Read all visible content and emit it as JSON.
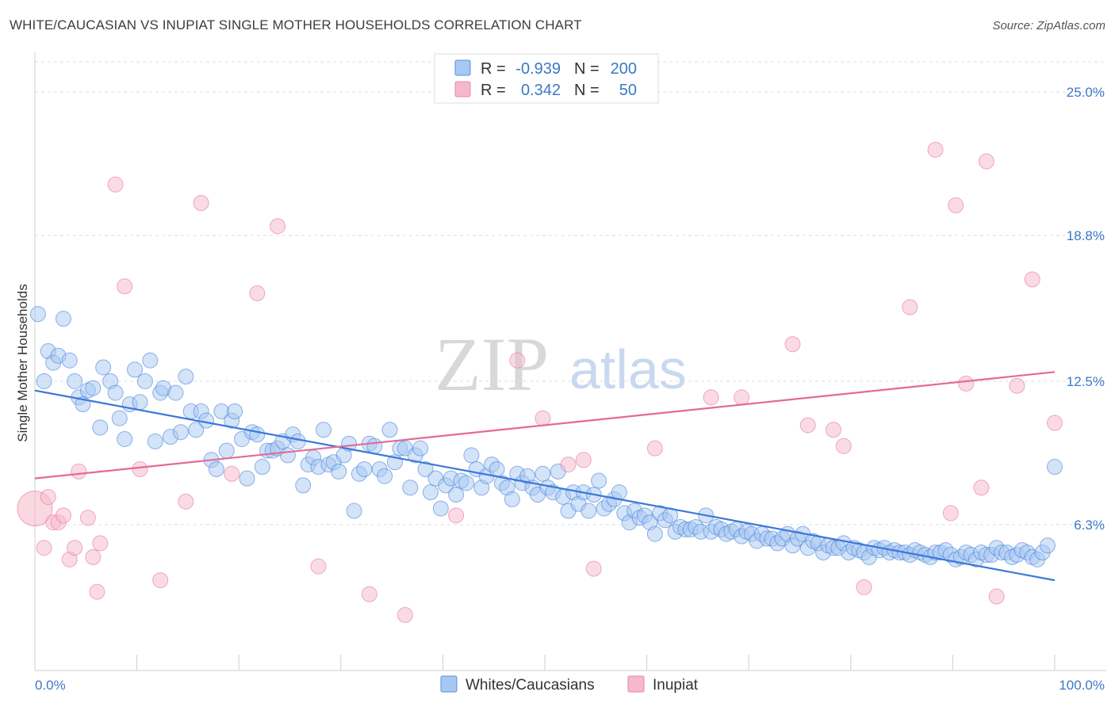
{
  "title": "WHITE/CAUCASIAN VS INUPIAT SINGLE MOTHER HOUSEHOLDS CORRELATION CHART",
  "source": "Source: ZipAtlas.com",
  "watermark": {
    "zip": "ZIP",
    "atlas": "atlas"
  },
  "legend_top": [
    {
      "r_label": "R =",
      "r_value": "-0.939",
      "n_label": "N =",
      "n_value": "200",
      "color": "#a7c8f2"
    },
    {
      "r_label": "R =",
      "r_value": "0.342",
      "n_label": "N =",
      "n_value": "50",
      "color": "#f6b8cb"
    }
  ],
  "legend_bottom": [
    {
      "label": "Whites/Caucasians",
      "color": "#a7c8f2"
    },
    {
      "label": "Inupiat",
      "color": "#f6b8cb"
    }
  ],
  "chart_data": {
    "type": "scatter",
    "xlabel": "",
    "ylabel": "Single Mother Households",
    "x_tick_labels": [
      "0.0%",
      "100.0%"
    ],
    "y_tick_labels": [
      "6.3%",
      "12.5%",
      "18.8%",
      "25.0%"
    ],
    "y_ticks": [
      6.3,
      12.5,
      18.8,
      25.0
    ],
    "xlim": [
      0,
      100
    ],
    "ylim": [
      0,
      26.3
    ],
    "grid": true,
    "legend_position": "top-center",
    "series": [
      {
        "name": "Whites/Caucasians",
        "color": "#3b78d8",
        "fill": "#a7c8f2",
        "trend": {
          "x": [
            0,
            100
          ],
          "y": [
            12.1,
            3.9
          ]
        },
        "points": [
          [
            0.3,
            15.4
          ],
          [
            0.9,
            12.5
          ],
          [
            1.3,
            13.8
          ],
          [
            1.8,
            13.3
          ],
          [
            2.3,
            13.6
          ],
          [
            2.8,
            15.2
          ],
          [
            3.4,
            13.4
          ],
          [
            3.9,
            12.5
          ],
          [
            4.3,
            11.8
          ],
          [
            4.7,
            11.5
          ],
          [
            5.2,
            12.1
          ],
          [
            5.7,
            12.2
          ],
          [
            6.4,
            10.5
          ],
          [
            6.7,
            13.1
          ],
          [
            7.4,
            12.5
          ],
          [
            7.9,
            12.0
          ],
          [
            8.3,
            10.9
          ],
          [
            8.8,
            10.0
          ],
          [
            9.3,
            11.5
          ],
          [
            9.8,
            13.0
          ],
          [
            10.3,
            11.6
          ],
          [
            10.8,
            12.5
          ],
          [
            11.3,
            13.4
          ],
          [
            11.8,
            9.9
          ],
          [
            12.3,
            12.0
          ],
          [
            12.6,
            12.2
          ],
          [
            13.3,
            10.1
          ],
          [
            13.8,
            12.0
          ],
          [
            14.3,
            10.3
          ],
          [
            14.8,
            12.7
          ],
          [
            15.3,
            11.2
          ],
          [
            15.8,
            10.4
          ],
          [
            16.3,
            11.2
          ],
          [
            16.8,
            10.8
          ],
          [
            17.3,
            9.1
          ],
          [
            17.8,
            8.7
          ],
          [
            18.3,
            11.2
          ],
          [
            18.8,
            9.5
          ],
          [
            19.3,
            10.8
          ],
          [
            19.6,
            11.2
          ],
          [
            20.3,
            10.0
          ],
          [
            20.8,
            8.3
          ],
          [
            21.3,
            10.3
          ],
          [
            21.8,
            10.2
          ],
          [
            22.3,
            8.8
          ],
          [
            22.8,
            9.5
          ],
          [
            23.3,
            9.5
          ],
          [
            23.8,
            9.6
          ],
          [
            24.3,
            9.9
          ],
          [
            24.8,
            9.3
          ],
          [
            25.3,
            10.2
          ],
          [
            25.8,
            9.9
          ],
          [
            26.3,
            8.0
          ],
          [
            26.8,
            8.9
          ],
          [
            27.3,
            9.2
          ],
          [
            27.8,
            8.8
          ],
          [
            28.3,
            10.4
          ],
          [
            28.8,
            8.9
          ],
          [
            29.3,
            9.0
          ],
          [
            29.8,
            8.6
          ],
          [
            30.3,
            9.3
          ],
          [
            30.8,
            9.8
          ],
          [
            31.3,
            6.9
          ],
          [
            31.8,
            8.5
          ],
          [
            32.3,
            8.7
          ],
          [
            32.8,
            9.8
          ],
          [
            33.3,
            9.7
          ],
          [
            33.8,
            8.7
          ],
          [
            34.3,
            8.4
          ],
          [
            34.8,
            10.4
          ],
          [
            35.3,
            9.0
          ],
          [
            35.8,
            9.6
          ],
          [
            36.3,
            9.6
          ],
          [
            36.8,
            7.9
          ],
          [
            37.3,
            9.3
          ],
          [
            37.8,
            9.6
          ],
          [
            38.3,
            8.7
          ],
          [
            38.8,
            7.7
          ],
          [
            39.3,
            8.3
          ],
          [
            39.8,
            7.0
          ],
          [
            40.3,
            8.0
          ],
          [
            40.8,
            8.3
          ],
          [
            41.3,
            7.6
          ],
          [
            41.8,
            8.2
          ],
          [
            42.3,
            8.1
          ],
          [
            42.8,
            9.3
          ],
          [
            43.3,
            8.7
          ],
          [
            43.8,
            7.9
          ],
          [
            44.3,
            8.4
          ],
          [
            44.8,
            8.9
          ],
          [
            45.3,
            8.7
          ],
          [
            45.8,
            8.1
          ],
          [
            46.3,
            7.9
          ],
          [
            46.8,
            7.4
          ],
          [
            47.3,
            8.5
          ],
          [
            47.8,
            8.1
          ],
          [
            48.3,
            8.4
          ],
          [
            48.8,
            7.9
          ],
          [
            49.3,
            7.6
          ],
          [
            49.8,
            8.5
          ],
          [
            50.3,
            7.9
          ],
          [
            50.8,
            7.7
          ],
          [
            51.3,
            8.6
          ],
          [
            51.8,
            7.5
          ],
          [
            52.3,
            6.9
          ],
          [
            52.8,
            7.7
          ],
          [
            53.3,
            7.2
          ],
          [
            53.8,
            7.7
          ],
          [
            54.3,
            6.9
          ],
          [
            54.8,
            7.6
          ],
          [
            55.3,
            8.2
          ],
          [
            55.8,
            7.0
          ],
          [
            56.3,
            7.2
          ],
          [
            56.8,
            7.4
          ],
          [
            57.3,
            7.7
          ],
          [
            57.8,
            6.8
          ],
          [
            58.3,
            6.4
          ],
          [
            58.8,
            6.9
          ],
          [
            59.3,
            6.6
          ],
          [
            59.8,
            6.7
          ],
          [
            60.3,
            6.4
          ],
          [
            60.8,
            5.9
          ],
          [
            61.3,
            6.8
          ],
          [
            61.8,
            6.5
          ],
          [
            62.3,
            6.7
          ],
          [
            62.8,
            6.0
          ],
          [
            63.3,
            6.2
          ],
          [
            63.8,
            6.1
          ],
          [
            64.3,
            6.1
          ],
          [
            64.8,
            6.2
          ],
          [
            65.3,
            6.0
          ],
          [
            65.8,
            6.7
          ],
          [
            66.3,
            6.0
          ],
          [
            66.8,
            6.2
          ],
          [
            67.3,
            6.1
          ],
          [
            67.8,
            5.9
          ],
          [
            68.3,
            6.0
          ],
          [
            68.8,
            6.1
          ],
          [
            69.3,
            5.8
          ],
          [
            69.8,
            6.0
          ],
          [
            70.3,
            5.9
          ],
          [
            70.8,
            5.6
          ],
          [
            71.3,
            5.9
          ],
          [
            71.8,
            5.7
          ],
          [
            72.3,
            5.7
          ],
          [
            72.8,
            5.5
          ],
          [
            73.3,
            5.7
          ],
          [
            73.8,
            5.9
          ],
          [
            74.3,
            5.4
          ],
          [
            74.8,
            5.7
          ],
          [
            75.3,
            5.9
          ],
          [
            75.8,
            5.3
          ],
          [
            76.3,
            5.6
          ],
          [
            76.8,
            5.5
          ],
          [
            77.3,
            5.1
          ],
          [
            77.8,
            5.4
          ],
          [
            78.3,
            5.3
          ],
          [
            78.8,
            5.3
          ],
          [
            79.3,
            5.5
          ],
          [
            79.8,
            5.1
          ],
          [
            80.3,
            5.3
          ],
          [
            80.8,
            5.2
          ],
          [
            81.3,
            5.1
          ],
          [
            81.8,
            4.9
          ],
          [
            82.3,
            5.3
          ],
          [
            82.8,
            5.2
          ],
          [
            83.3,
            5.3
          ],
          [
            83.8,
            5.1
          ],
          [
            84.3,
            5.2
          ],
          [
            84.8,
            5.1
          ],
          [
            85.3,
            5.1
          ],
          [
            85.8,
            5.0
          ],
          [
            86.3,
            5.2
          ],
          [
            86.8,
            5.1
          ],
          [
            87.3,
            5.0
          ],
          [
            87.8,
            4.9
          ],
          [
            88.3,
            5.1
          ],
          [
            88.8,
            5.1
          ],
          [
            89.3,
            5.2
          ],
          [
            89.8,
            5.0
          ],
          [
            90.3,
            4.8
          ],
          [
            90.8,
            4.9
          ],
          [
            91.3,
            5.1
          ],
          [
            91.8,
            5.0
          ],
          [
            92.3,
            4.8
          ],
          [
            92.8,
            5.1
          ],
          [
            93.3,
            5.0
          ],
          [
            93.8,
            5.0
          ],
          [
            94.3,
            5.3
          ],
          [
            94.8,
            5.1
          ],
          [
            95.3,
            5.1
          ],
          [
            95.8,
            4.9
          ],
          [
            96.3,
            5.0
          ],
          [
            96.8,
            5.2
          ],
          [
            97.3,
            5.1
          ],
          [
            97.8,
            4.9
          ],
          [
            98.3,
            4.8
          ],
          [
            98.8,
            5.1
          ],
          [
            99.3,
            5.4
          ],
          [
            100.0,
            8.8
          ]
        ]
      },
      {
        "name": "Inupiat",
        "color": "#e56a94",
        "fill": "#f6b8cb",
        "trend": {
          "x": [
            0,
            100
          ],
          "y": [
            8.3,
            12.9
          ]
        },
        "points": [
          [
            0.0,
            7.0
          ],
          [
            0.9,
            5.3
          ],
          [
            1.3,
            7.5
          ],
          [
            1.8,
            6.4
          ],
          [
            2.3,
            6.4
          ],
          [
            2.8,
            6.7
          ],
          [
            3.4,
            4.8
          ],
          [
            3.9,
            5.3
          ],
          [
            4.3,
            8.6
          ],
          [
            5.2,
            6.6
          ],
          [
            5.7,
            4.9
          ],
          [
            6.1,
            3.4
          ],
          [
            6.4,
            5.5
          ],
          [
            7.9,
            21.0
          ],
          [
            8.8,
            16.6
          ],
          [
            10.3,
            8.7
          ],
          [
            12.3,
            3.9
          ],
          [
            14.8,
            7.3
          ],
          [
            16.3,
            20.2
          ],
          [
            19.3,
            8.5
          ],
          [
            21.8,
            16.3
          ],
          [
            23.8,
            19.2
          ],
          [
            27.8,
            4.5
          ],
          [
            32.8,
            3.3
          ],
          [
            36.3,
            2.4
          ],
          [
            41.3,
            6.7
          ],
          [
            47.3,
            13.4
          ],
          [
            49.8,
            10.9
          ],
          [
            52.3,
            8.9
          ],
          [
            53.8,
            9.1
          ],
          [
            54.8,
            4.4
          ],
          [
            60.8,
            9.6
          ],
          [
            66.3,
            11.8
          ],
          [
            69.3,
            11.8
          ],
          [
            74.3,
            14.1
          ],
          [
            75.8,
            10.6
          ],
          [
            78.3,
            10.4
          ],
          [
            79.3,
            9.7
          ],
          [
            81.3,
            3.6
          ],
          [
            85.8,
            15.7
          ],
          [
            88.3,
            22.5
          ],
          [
            89.8,
            6.8
          ],
          [
            90.3,
            20.1
          ],
          [
            91.3,
            12.4
          ],
          [
            92.8,
            7.9
          ],
          [
            93.3,
            22.0
          ],
          [
            94.3,
            3.2
          ],
          [
            96.3,
            12.3
          ],
          [
            97.8,
            16.9
          ],
          [
            100.0,
            10.7
          ]
        ]
      }
    ]
  }
}
